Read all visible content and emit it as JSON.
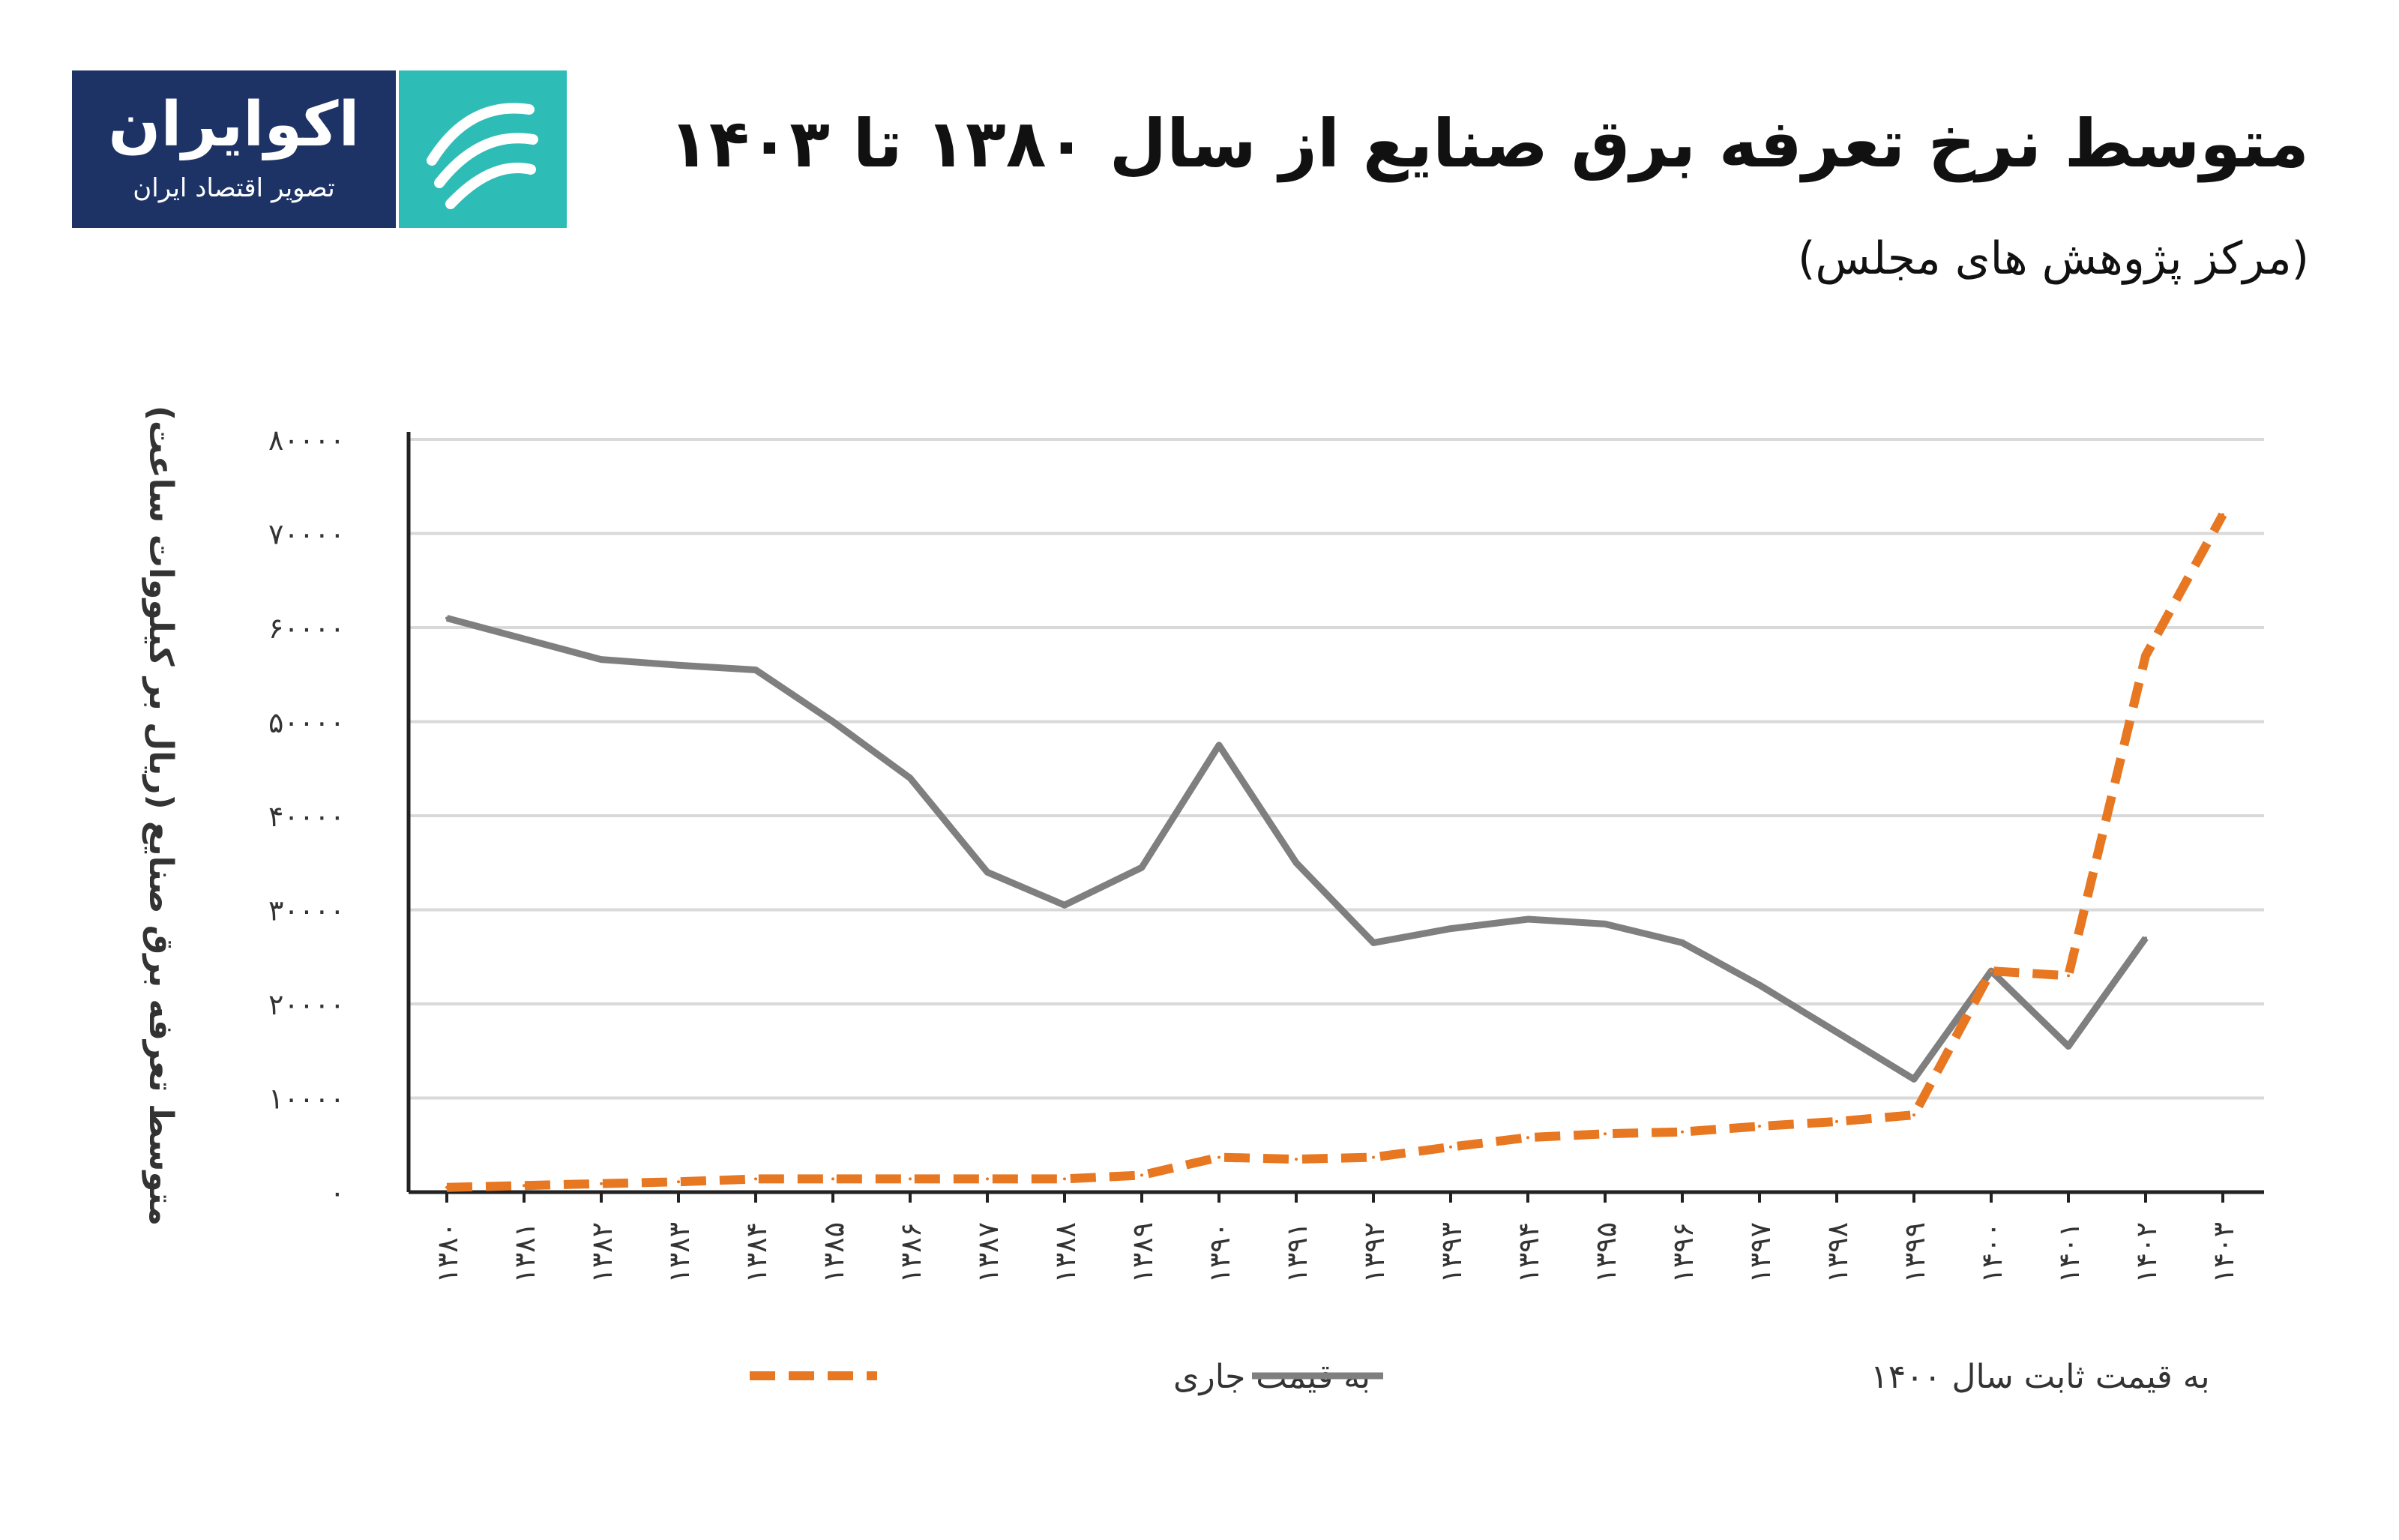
{
  "logo": {
    "name": "اکوایران",
    "tagline": "تصویر اقتصاد ایران",
    "icon": "ecoiran-logo-icon",
    "colors": {
      "navy": "#1d3366",
      "teal": "#2ebdb6"
    }
  },
  "header": {
    "title": "متوسط نرخ تعرفه برق صنایع از سال ۱۳۸۰ تا ۱۴۰۳",
    "subtitle": "(مرکز پژوهش های مجلس)"
  },
  "chart_data": {
    "type": "line",
    "ylabel": "متوسط تعرفه برق صنایع (ریال بر کیلووات ساعت)",
    "ylim": [
      0,
      80000
    ],
    "y_ticks": [
      0,
      10000,
      20000,
      30000,
      40000,
      50000,
      60000,
      70000,
      80000
    ],
    "y_tick_labels": [
      "۰",
      "۱۰۰۰۰",
      "۲۰۰۰۰",
      "۳۰۰۰۰",
      "۴۰۰۰۰",
      "۵۰۰۰۰",
      "۶۰۰۰۰",
      "۷۰۰۰۰",
      "۸۰۰۰۰"
    ],
    "categories": [
      "۱۳۸۰",
      "۱۳۸۱",
      "۱۳۸۲",
      "۱۳۸۳",
      "۱۳۸۴",
      "۱۳۸۵",
      "۱۳۸۶",
      "۱۳۸۷",
      "۱۳۸۸",
      "۱۳۸۹",
      "۱۳۹۰",
      "۱۳۹۱",
      "۱۳۹۲",
      "۱۳۹۳",
      "۱۳۹۴",
      "۱۳۹۵",
      "۱۳۹۶",
      "۱۳۹۷",
      "۱۳۹۸",
      "۱۳۹۹",
      "۱۴۰۰",
      "۱۴۰۱",
      "۱۴۰۲",
      "۱۴۰۳"
    ],
    "grid": "horizontal",
    "legend_position": "bottom",
    "series": [
      {
        "name": "به قیمت ثابت سال ۱۴۰۰",
        "color": "#7f7f7f",
        "style": "solid",
        "values": [
          61000,
          58800,
          56600,
          56000,
          55500,
          50000,
          44000,
          34000,
          30500,
          34500,
          47500,
          35000,
          26500,
          28000,
          29000,
          28500,
          26500,
          22000,
          17000,
          12000,
          23500,
          15500,
          27000,
          null
        ]
      },
      {
        "name": "به قیمت جاری",
        "color": "#e87722",
        "style": "dashed",
        "values": [
          500,
          700,
          900,
          1100,
          1400,
          1400,
          1400,
          1400,
          1400,
          1800,
          3700,
          3500,
          3700,
          4800,
          5800,
          6200,
          6400,
          7000,
          7500,
          8200,
          23500,
          23000,
          57000,
          72000
        ]
      }
    ]
  }
}
